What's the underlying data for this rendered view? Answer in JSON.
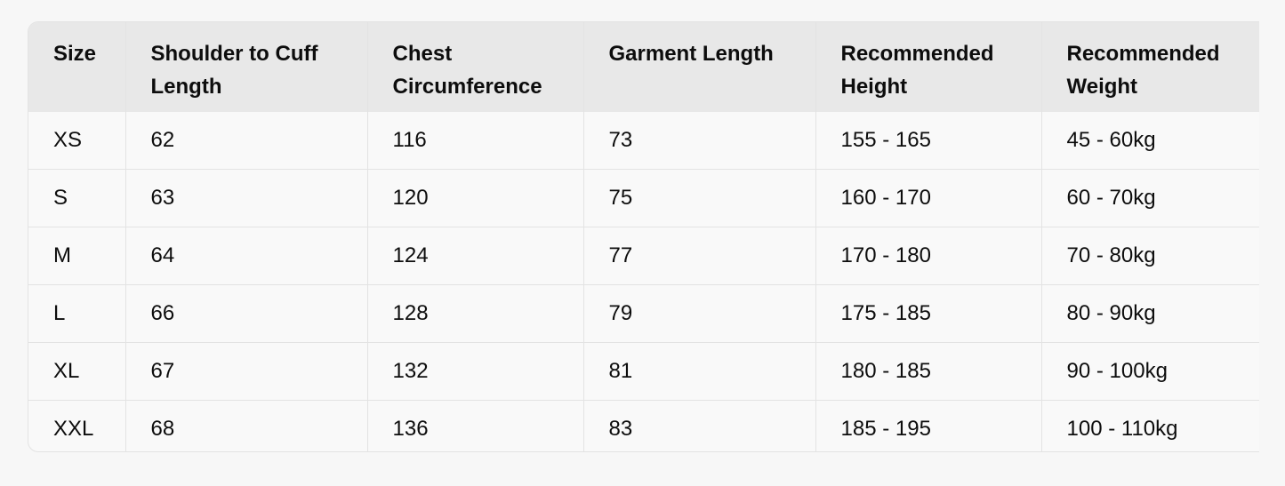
{
  "table": {
    "headers": [
      "Size",
      "Shoulder to Cuff Length",
      "Chest Circumference",
      "Garment Length",
      "Recommended Height",
      "Recommended Weight"
    ],
    "rows": [
      [
        "XS",
        "62",
        "116",
        "73",
        "155 - 165",
        "45 - 60kg"
      ],
      [
        "S",
        "63",
        "120",
        "75",
        "160 - 170",
        "60 - 70kg"
      ],
      [
        "M",
        "64",
        "124",
        "77",
        "170 - 180",
        "70 - 80kg"
      ],
      [
        "L",
        "66",
        "128",
        "79",
        "175 - 185",
        "80 - 90kg"
      ],
      [
        "XL",
        "67",
        "132",
        "81",
        "180 - 185",
        "90 - 100kg"
      ],
      [
        "XXL",
        "68",
        "136",
        "83",
        "185 - 195",
        "100 - 110kg"
      ]
    ]
  }
}
